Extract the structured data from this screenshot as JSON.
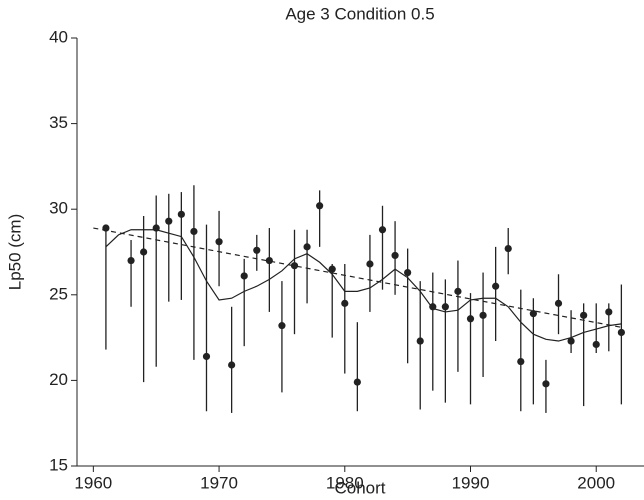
{
  "chart_data": {
    "type": "scatter",
    "title": "Age 3  Condition 0.5",
    "xlabel": "Cohort",
    "ylabel": "Lp50 (cm)",
    "x": [
      1961,
      1963,
      1964,
      1965,
      1966,
      1967,
      1968,
      1969,
      1970,
      1971,
      1972,
      1973,
      1974,
      1975,
      1976,
      1977,
      1978,
      1979,
      1980,
      1981,
      1982,
      1983,
      1984,
      1985,
      1986,
      1987,
      1988,
      1989,
      1990,
      1991,
      1992,
      1993,
      1994,
      1995,
      1996,
      1997,
      1998,
      1999,
      2000,
      2001,
      2002
    ],
    "values": [
      28.9,
      27.0,
      27.5,
      28.9,
      29.3,
      29.7,
      28.7,
      21.4,
      28.1,
      20.9,
      26.1,
      27.6,
      27.0,
      23.2,
      26.7,
      27.8,
      30.2,
      26.5,
      24.5,
      19.9,
      26.8,
      28.8,
      27.3,
      26.3,
      22.3,
      24.3,
      24.3,
      25.2,
      23.6,
      23.8,
      25.5,
      27.7,
      21.1,
      23.9,
      19.8,
      24.5,
      22.3,
      23.8,
      22.1,
      24.0,
      22.8
    ],
    "low": [
      21.8,
      24.3,
      19.9,
      20.8,
      24.6,
      24.7,
      21.2,
      18.2,
      25.5,
      18.1,
      22.0,
      26.4,
      24.0,
      19.3,
      22.7,
      24.5,
      27.8,
      22.5,
      20.4,
      18.2,
      24.0,
      25.3,
      25.0,
      21.0,
      18.3,
      19.4,
      18.7,
      20.5,
      18.6,
      20.2,
      22.3,
      26.2,
      18.2,
      18.6,
      18.1,
      22.7,
      21.6,
      18.5,
      21.6,
      21.7,
      18.6
    ],
    "high": [
      28.9,
      28.2,
      29.6,
      30.8,
      30.9,
      31.0,
      31.4,
      29.1,
      29.9,
      24.3,
      27.1,
      28.5,
      28.9,
      25.8,
      28.8,
      28.8,
      31.1,
      26.8,
      26.8,
      23.4,
      28.5,
      30.2,
      29.3,
      27.7,
      25.8,
      26.3,
      25.9,
      27.0,
      25.1,
      26.3,
      27.8,
      28.9,
      25.3,
      24.8,
      21.2,
      26.2,
      24.1,
      24.5,
      24.5,
      24.5,
      25.6
    ],
    "smooth": {
      "x": [
        1961,
        1962,
        1963,
        1964,
        1965,
        1966,
        1967,
        1968,
        1969,
        1970,
        1971,
        1972,
        1973,
        1974,
        1975,
        1976,
        1977,
        1978,
        1979,
        1980,
        1981,
        1982,
        1983,
        1984,
        1985,
        1986,
        1987,
        1988,
        1989,
        1990,
        1991,
        1992,
        1993,
        1994,
        1995,
        1996,
        1997,
        1998,
        1999,
        2000,
        2001,
        2002
      ],
      "values": [
        27.8,
        28.5,
        28.8,
        28.8,
        28.8,
        28.6,
        28.4,
        27.2,
        25.8,
        24.7,
        24.8,
        25.2,
        25.5,
        25.9,
        26.4,
        27.1,
        27.4,
        26.9,
        26.2,
        25.2,
        25.2,
        25.4,
        25.9,
        26.5,
        26.0,
        25.2,
        24.2,
        24.0,
        24.1,
        24.7,
        24.8,
        24.8,
        24.3,
        23.4,
        22.7,
        22.4,
        22.3,
        22.5,
        22.8,
        23.0,
        23.2,
        23.3
      ]
    },
    "trend": {
      "x": [
        1960,
        2002
      ],
      "values": [
        28.9,
        23.1
      ]
    },
    "color": "#222222",
    "xlim": [
      1958.7,
      2003.8
    ],
    "xticks": [
      1960,
      1970,
      1980,
      1990,
      2000
    ],
    "ylim": [
      15,
      40
    ],
    "yticks": [
      15,
      20,
      25,
      30,
      35,
      40
    ]
  }
}
